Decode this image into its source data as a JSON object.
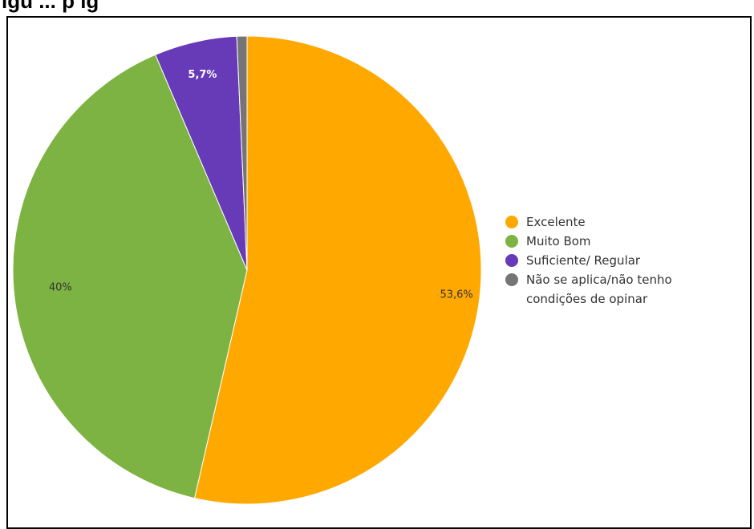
{
  "header": {
    "title_fragment": "igu ... p  ig"
  },
  "chart_data": {
    "type": "pie",
    "title": "",
    "categories": [
      "Excelente",
      "Muito Bom",
      "Suficiente/ Regular",
      "Não se aplica/não tenho condições de opinar"
    ],
    "values": [
      53.6,
      40,
      5.7,
      0.7
    ],
    "data_labels": [
      "53,6%",
      "40%",
      "5,7%",
      ""
    ],
    "colors": [
      "#FFA800",
      "#7CB342",
      "#673AB7",
      "#757575"
    ],
    "label_colors": [
      "#333333",
      "#333333",
      "#ffffff",
      "#ffffff"
    ],
    "legend": {
      "position": "right",
      "entries": [
        {
          "lines": [
            "Excelente"
          ]
        },
        {
          "lines": [
            "Muito Bom"
          ]
        },
        {
          "lines": [
            "Suficiente/ Regular"
          ]
        },
        {
          "lines": [
            "Não se aplica/não tenho",
            "condições de opinar"
          ]
        }
      ]
    }
  }
}
